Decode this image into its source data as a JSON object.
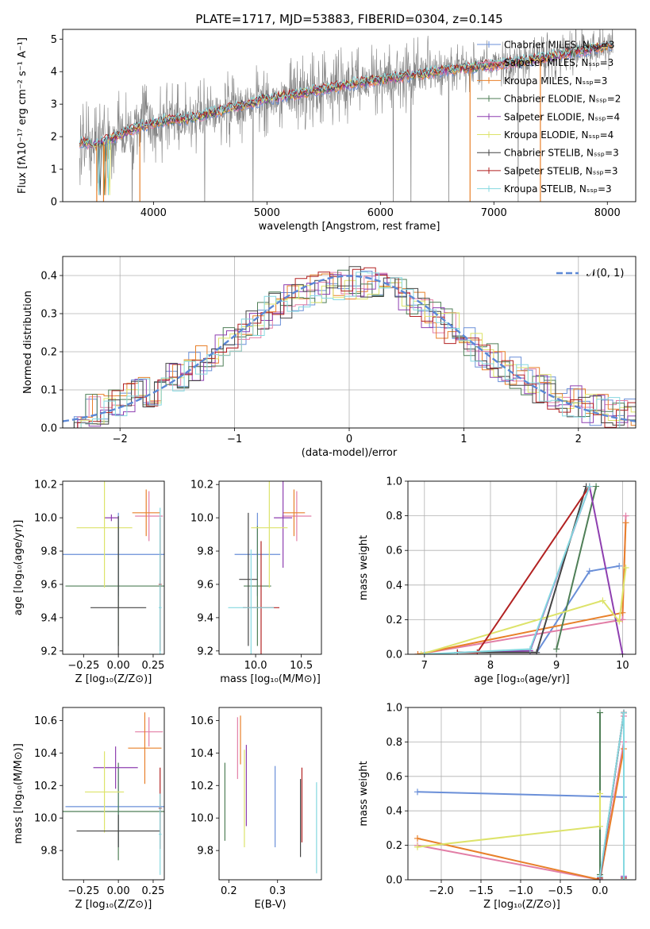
{
  "figure": {
    "title": "PLATE=1717, MJD=53883, FIBERID=0304, z=0.145"
  },
  "colors": {
    "Chabrier MILES": "#6a8fd8",
    "Salpeter MILES": "#e27ea6",
    "Kroupa MILES": "#e8802a",
    "Chabrier ELODIE": "#4f7f57",
    "Salpeter ELODIE": "#8e3fb0",
    "Kroupa ELODIE": "#dde36a",
    "Chabrier STELIB": "#444444",
    "Salpeter STELIB": "#b22222",
    "Kroupa STELIB": "#85d8e0",
    "data": "#808080",
    "normal": "#5b88d6"
  },
  "chart_data": [
    {
      "id": "spectrum",
      "type": "line",
      "xlabel": "wavelength [Angstrom, rest frame]",
      "ylabel": "Flux [fλ10⁻¹⁷ erg cm⁻² s⁻¹ A⁻¹]",
      "xlim": [
        3200,
        8250
      ],
      "ylim": [
        0,
        5.3
      ],
      "xticks": [
        "4000",
        "5000",
        "6000",
        "7000",
        "8000"
      ],
      "yticks": [
        "0",
        "1",
        "2",
        "3",
        "4",
        "5"
      ],
      "legend_position": "top-right",
      "legend": [
        "Chabrier MILES, Nₛₛₚ=3",
        "Salpeter MILES, Nₛₛₚ=3",
        "Kroupa MILES, Nₛₛₚ=3",
        "Chabrier ELODIE, Nₛₛₚ=2",
        "Salpeter ELODIE, Nₛₛₚ=4",
        "Kroupa ELODIE, Nₛₛₚ=4",
        "Chabrier STELIB, Nₛₛₚ=3",
        "Salpeter STELIB, Nₛₛₚ=3",
        "Kroupa STELIB, Nₛₛₚ=3"
      ],
      "model_continuum": {
        "x": [
          3350,
          3500,
          3700,
          3900,
          4100,
          4300,
          4600,
          5000,
          5400,
          5800,
          6200,
          6600,
          7000,
          7400,
          7800,
          8050
        ],
        "y": [
          1.85,
          1.75,
          2.05,
          2.35,
          2.5,
          2.55,
          2.8,
          3.15,
          3.4,
          3.65,
          3.85,
          4.05,
          4.2,
          4.4,
          4.65,
          4.85
        ]
      }
    },
    {
      "id": "residuals",
      "type": "area",
      "xlabel": "(data-model)/error",
      "ylabel": "Normed distribution",
      "xlim": [
        -2.5,
        2.5
      ],
      "ylim": [
        0,
        0.45
      ],
      "xticks": [
        "−2",
        "−1",
        "0",
        "1",
        "2"
      ],
      "yticks": [
        "0.0",
        "0.1",
        "0.2",
        "0.3",
        "0.4"
      ],
      "grid": true,
      "legend_position": "top-right",
      "legend": [
        "𝒩(0, 1)"
      ]
    },
    {
      "id": "age-vs-Z",
      "type": "scatter",
      "xlabel": "Z [log₁₀(Z/Z⊙)]",
      "ylabel": "age  [log₁₀(age/yr)]",
      "xlim": [
        -0.4,
        0.33
      ],
      "ylim": [
        9.18,
        10.22
      ],
      "xticks": [
        "−0.25",
        "0.00",
        "0.25"
      ],
      "yticks": [
        "9.2",
        "9.4",
        "9.6",
        "9.8",
        "10.0",
        "10.2"
      ],
      "points": [
        {
          "series": "Chabrier MILES",
          "x": -0.0,
          "y": 9.78,
          "xerr": 0.45,
          "yerr": 0.25
        },
        {
          "series": "Salpeter MILES",
          "x": 0.22,
          "y": 10.01,
          "xerr": 0.1,
          "yerr": 0.15
        },
        {
          "series": "Kroupa MILES",
          "x": 0.2,
          "y": 10.03,
          "xerr": 0.1,
          "yerr": 0.14
        },
        {
          "series": "Chabrier ELODIE",
          "x": 0.0,
          "y": 9.59,
          "xerr": 0.38,
          "yerr": 0.36
        },
        {
          "series": "Salpeter ELODIE",
          "x": -0.05,
          "y": 10.0,
          "xerr": 0.05,
          "yerr": 0.02
        },
        {
          "series": "Kroupa ELODIE",
          "x": -0.1,
          "y": 9.94,
          "xerr": 0.2,
          "yerr": 0.36
        },
        {
          "series": "Chabrier STELIB",
          "x": 0.0,
          "y": 9.46,
          "xerr": 0.2,
          "yerr": 0.55
        },
        {
          "series": "Salpeter STELIB",
          "x": 0.3,
          "y": 9.6,
          "xerr": 0.01,
          "yerr": 0.4
        },
        {
          "series": "Kroupa STELIB",
          "x": 0.3,
          "y": 9.46,
          "xerr": 0.01,
          "yerr": 0.6
        }
      ]
    },
    {
      "id": "age-vs-mass",
      "type": "scatter",
      "xlabel": "mass [log₁₀(M/M⊙)]",
      "ylabel": "",
      "xlim": [
        9.6,
        10.72
      ],
      "ylim": [
        9.18,
        10.22
      ],
      "xticks": [
        "10.0",
        "10.5"
      ],
      "yticks": [
        "9.2",
        "9.4",
        "9.6",
        "9.8",
        "10.0",
        "10.2"
      ],
      "points": [
        {
          "series": "Chabrier MILES",
          "x": 10.02,
          "y": 9.78,
          "xerr": 0.25,
          "yerr": 0.25
        },
        {
          "series": "Salpeter MILES",
          "x": 10.45,
          "y": 10.01,
          "xerr": 0.16,
          "yerr": 0.15
        },
        {
          "series": "Kroupa MILES",
          "x": 10.42,
          "y": 10.03,
          "xerr": 0.12,
          "yerr": 0.14
        },
        {
          "series": "Chabrier ELODIE",
          "x": 10.02,
          "y": 9.59,
          "xerr": 0.15,
          "yerr": 0.36
        },
        {
          "series": "Salpeter ELODIE",
          "x": 10.3,
          "y": 10.0,
          "xerr": 0.1,
          "yerr": 0.3
        },
        {
          "series": "Kroupa ELODIE",
          "x": 10.15,
          "y": 9.94,
          "xerr": 0.2,
          "yerr": 0.36
        },
        {
          "series": "Chabrier STELIB",
          "x": 9.92,
          "y": 9.63,
          "xerr": 0.1,
          "yerr": 0.4
        },
        {
          "series": "Salpeter STELIB",
          "x": 10.06,
          "y": 9.46,
          "xerr": 0.2,
          "yerr": 0.4
        },
        {
          "series": "Kroupa STELIB",
          "x": 9.95,
          "y": 9.46,
          "xerr": 0.25,
          "yerr": 0.35
        }
      ]
    },
    {
      "id": "weight-vs-age",
      "type": "line",
      "xlabel": "age  [log₁₀(age/yr)]",
      "ylabel": "mass weight",
      "xlim": [
        6.75,
        10.2
      ],
      "ylim": [
        0,
        1.0
      ],
      "xticks": [
        "7",
        "8",
        "9",
        "10"
      ],
      "yticks": [
        "0.0",
        "0.2",
        "0.4",
        "0.6",
        "0.8",
        "1.0"
      ],
      "grid": true,
      "series": [
        {
          "name": "Chabrier MILES",
          "x": [
            8.7,
            9.5,
            9.95
          ],
          "y": [
            0.01,
            0.48,
            0.51
          ]
        },
        {
          "name": "Salpeter MILES",
          "x": [
            6.9,
            10.0,
            10.05
          ],
          "y": [
            0.0,
            0.2,
            0.8
          ]
        },
        {
          "name": "Kroupa MILES",
          "x": [
            6.9,
            10.0,
            10.05
          ],
          "y": [
            0.0,
            0.24,
            0.76
          ]
        },
        {
          "name": "Chabrier ELODIE",
          "x": [
            9.0,
            9.6
          ],
          "y": [
            0.03,
            0.97
          ]
        },
        {
          "name": "Salpeter ELODIE",
          "x": [
            7.5,
            8.6,
            9.5,
            10.0
          ],
          "y": [
            0.01,
            0.02,
            0.97,
            0.0
          ]
        },
        {
          "name": "Kroupa ELODIE",
          "x": [
            6.95,
            9.7,
            9.95,
            10.05
          ],
          "y": [
            0.0,
            0.31,
            0.19,
            0.5
          ]
        },
        {
          "name": "Chabrier STELIB",
          "x": [
            7.5,
            8.7,
            9.45
          ],
          "y": [
            0.01,
            0.01,
            0.97
          ]
        },
        {
          "name": "Salpeter STELIB",
          "x": [
            7.5,
            7.8,
            9.5
          ],
          "y": [
            0.01,
            0.01,
            0.97
          ]
        },
        {
          "name": "Kroupa STELIB",
          "x": [
            7.0,
            8.6,
            9.5
          ],
          "y": [
            0.0,
            0.03,
            0.97
          ]
        }
      ]
    },
    {
      "id": "mass-vs-Z",
      "type": "scatter",
      "xlabel": "Z [log₁₀(Z/Z⊙)]",
      "ylabel": "mass [log₁₀(M/M⊙)]",
      "xlim": [
        -0.4,
        0.33
      ],
      "ylim": [
        9.62,
        10.68
      ],
      "xticks": [
        "−0.25",
        "0.00",
        "0.25"
      ],
      "yticks": [
        "9.8",
        "10.0",
        "10.2",
        "10.4",
        "10.6"
      ],
      "points": [
        {
          "series": "Chabrier MILES",
          "x": 0.0,
          "y": 10.07,
          "xerr": 0.38,
          "yerr": 0.25
        },
        {
          "series": "Salpeter MILES",
          "x": 0.22,
          "y": 10.53,
          "xerr": 0.1,
          "yerr": 0.09
        },
        {
          "series": "Kroupa MILES",
          "x": 0.19,
          "y": 10.43,
          "xerr": 0.12,
          "yerr": 0.22
        },
        {
          "series": "Chabrier ELODIE",
          "x": 0.0,
          "y": 10.04,
          "xerr": 0.4,
          "yerr": 0.3
        },
        {
          "series": "Salpeter ELODIE",
          "x": -0.02,
          "y": 10.31,
          "xerr": 0.16,
          "yerr": 0.13
        },
        {
          "series": "Kroupa ELODIE",
          "x": -0.1,
          "y": 10.16,
          "xerr": 0.14,
          "yerr": 0.25
        },
        {
          "series": "Chabrier STELIB",
          "x": 0.0,
          "y": 9.92,
          "xerr": 0.3,
          "yerr": 0.1
        },
        {
          "series": "Salpeter STELIB",
          "x": 0.3,
          "y": 10.06,
          "xerr": 0.01,
          "yerr": 0.25
        },
        {
          "series": "Kroupa STELIB",
          "x": 0.3,
          "y": 9.9,
          "xerr": 0.01,
          "yerr": 0.25
        }
      ]
    },
    {
      "id": "mass-vs-EBV",
      "type": "scatter",
      "xlabel": "E(B-V)",
      "ylabel": "",
      "xlim": [
        0.18,
        0.39
      ],
      "ylim": [
        9.62,
        10.68
      ],
      "xticks": [
        "0.2",
        "0.3"
      ],
      "yticks": [
        "9.8",
        "10.0",
        "10.2",
        "10.4",
        "10.6"
      ],
      "points": [
        {
          "series": "Chabrier MILES",
          "x": 0.295,
          "y": 10.07,
          "xerr": 0,
          "yerr": 0.25
        },
        {
          "series": "Salpeter MILES",
          "x": 0.218,
          "y": 10.43,
          "xerr": 0,
          "yerr": 0.19
        },
        {
          "series": "Kroupa MILES",
          "x": 0.224,
          "y": 10.48,
          "xerr": 0,
          "yerr": 0.15
        },
        {
          "series": "Chabrier ELODIE",
          "x": 0.192,
          "y": 10.1,
          "xerr": 0,
          "yerr": 0.24
        },
        {
          "series": "Salpeter ELODIE",
          "x": 0.236,
          "y": 10.2,
          "xerr": 0,
          "yerr": 0.25
        },
        {
          "series": "Kroupa ELODIE",
          "x": 0.232,
          "y": 10.12,
          "xerr": 0,
          "yerr": 0.3
        },
        {
          "series": "Chabrier STELIB",
          "x": 0.347,
          "y": 10.0,
          "xerr": 0,
          "yerr": 0.24
        },
        {
          "series": "Salpeter STELIB",
          "x": 0.35,
          "y": 10.08,
          "xerr": 0,
          "yerr": 0.23
        },
        {
          "series": "Kroupa STELIB",
          "x": 0.38,
          "y": 9.94,
          "xerr": 0,
          "yerr": 0.28
        }
      ]
    },
    {
      "id": "weight-vs-Z",
      "type": "line",
      "xlabel": "Z [log₁₀(Z/Z⊙)]",
      "ylabel": "mass weight",
      "xlim": [
        -2.42,
        0.45
      ],
      "ylim": [
        0,
        1.0
      ],
      "xticks": [
        "−2.0",
        "−1.5",
        "−1.0",
        "−0.5",
        "0.0"
      ],
      "yticks": [
        "0.0",
        "0.2",
        "0.4",
        "0.6",
        "0.8",
        "1.0"
      ],
      "grid": true,
      "series": [
        {
          "name": "Chabrier MILES",
          "x": [
            -2.3,
            0.3,
            0.3
          ],
          "y": [
            0.51,
            0.48,
            0.01
          ]
        },
        {
          "name": "Salpeter MILES",
          "x": [
            -2.3,
            0.0,
            0.3,
            0.3
          ],
          "y": [
            0.2,
            0.0,
            0.8,
            0.95
          ]
        },
        {
          "name": "Kroupa MILES",
          "x": [
            -2.3,
            0.0,
            0.3,
            0.3
          ],
          "y": [
            0.24,
            0.0,
            0.76,
            0.97
          ]
        },
        {
          "name": "Chabrier ELODIE",
          "x": [
            0.0,
            0.0
          ],
          "y": [
            0.97,
            0.03
          ]
        },
        {
          "name": "Salpeter ELODIE",
          "x": [
            0.0,
            0.3,
            0.3
          ],
          "y": [
            0.0,
            0.97,
            0.02
          ]
        },
        {
          "name": "Kroupa ELODIE",
          "x": [
            -2.3,
            0.0,
            0.0
          ],
          "y": [
            0.19,
            0.31,
            0.5
          ]
        },
        {
          "name": "Chabrier STELIB",
          "x": [
            0.0,
            0.3,
            0.3
          ],
          "y": [
            0.01,
            0.97,
            0.01
          ]
        },
        {
          "name": "Salpeter STELIB",
          "x": [
            0.0,
            0.3,
            0.3
          ],
          "y": [
            0.01,
            0.97,
            0.01
          ]
        },
        {
          "name": "Kroupa STELIB",
          "x": [
            0.0,
            0.3,
            0.3
          ],
          "y": [
            0.02,
            0.97,
            0.0
          ]
        }
      ]
    }
  ]
}
